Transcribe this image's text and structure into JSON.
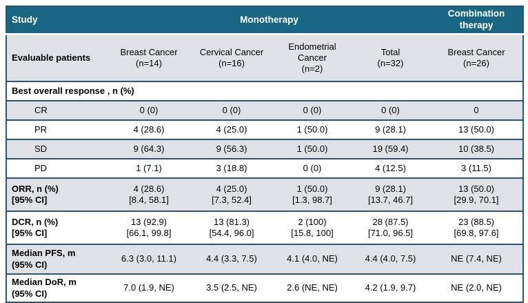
{
  "colors": {
    "header_bg": "#186681",
    "header_text": "#ffffff",
    "row_alt_bg": "#dee1e6",
    "border": "#2b5574",
    "body_text": "#000000"
  },
  "header": {
    "study": "Study",
    "monotherapy": "Monotherapy",
    "combination_therapy": "Combination\ntherapy"
  },
  "columns": {
    "label": "Evaluable patients",
    "items": [
      "Breast Cancer\n(n=14)",
      "Cervical Cancer\n(n=16)",
      "Endometrial\nCancer\n(n=2)",
      "Total\n(n=32)",
      "Breast Cancer\n(n=26)"
    ]
  },
  "section": {
    "title": "Best overall response , n (%)"
  },
  "response_rows": [
    {
      "label": "CR",
      "values": [
        "0 (0)",
        "0 (0)",
        "0 (0)",
        "0 (0)",
        "0"
      ]
    },
    {
      "label": "PR",
      "values": [
        "4 (28.6)",
        "4 (25.0)",
        "1 (50.0)",
        "9 (28.1)",
        "13 (50.0)"
      ]
    },
    {
      "label": "SD",
      "values": [
        "9 (64.3)",
        "9 (56.3)",
        "1 (50.0)",
        "19 (59.4)",
        "10 (38.5)"
      ]
    },
    {
      "label": "PD",
      "values": [
        "1 (7.1)",
        "3 (18.8)",
        "0 (0)",
        "4 (12.5)",
        "3 (11.5)"
      ]
    }
  ],
  "stat_rows": [
    {
      "label": "ORR, n (%)\n[95% CI]",
      "values": [
        "4 (28.6)\n[8.4, 58.1]",
        "4 (25.0)\n[7.3, 52.4]",
        "1 (50.0)\n[1.3, 98.7]",
        "9 (28.1)\n[13.7, 46.7]",
        "13 (50.0)\n[29.9, 70.1]"
      ]
    },
    {
      "label": "DCR, n (%)\n[95% CI]",
      "values": [
        "13 (92.9)\n[66.1, 99.8]",
        "13 (81.3)\n[54.4, 96.0]",
        "2 (100)\n[15.8, 100]",
        "28 (87.5)\n[71.0, 96.5]",
        "23 (88.5)\n[69.8, 97.6]"
      ]
    },
    {
      "label": "Median PFS, m\n(95% CI)",
      "values": [
        "6.3 (3.0, 11.1)",
        "4.4 (3.3, 7.5)",
        "4.1 (4.0, NE)",
        "4.4 (4.0, 7.5)",
        "NE (7.4, NE)"
      ]
    },
    {
      "label": "Median DoR, m\n(95% CI)",
      "values": [
        "7.0 (1.9, NE)",
        "3.5 (2.5, NE)",
        "2.6 (NE, NE)",
        "4.2 (1.9, 9.7)",
        "NE (2.0, NE)"
      ]
    }
  ]
}
